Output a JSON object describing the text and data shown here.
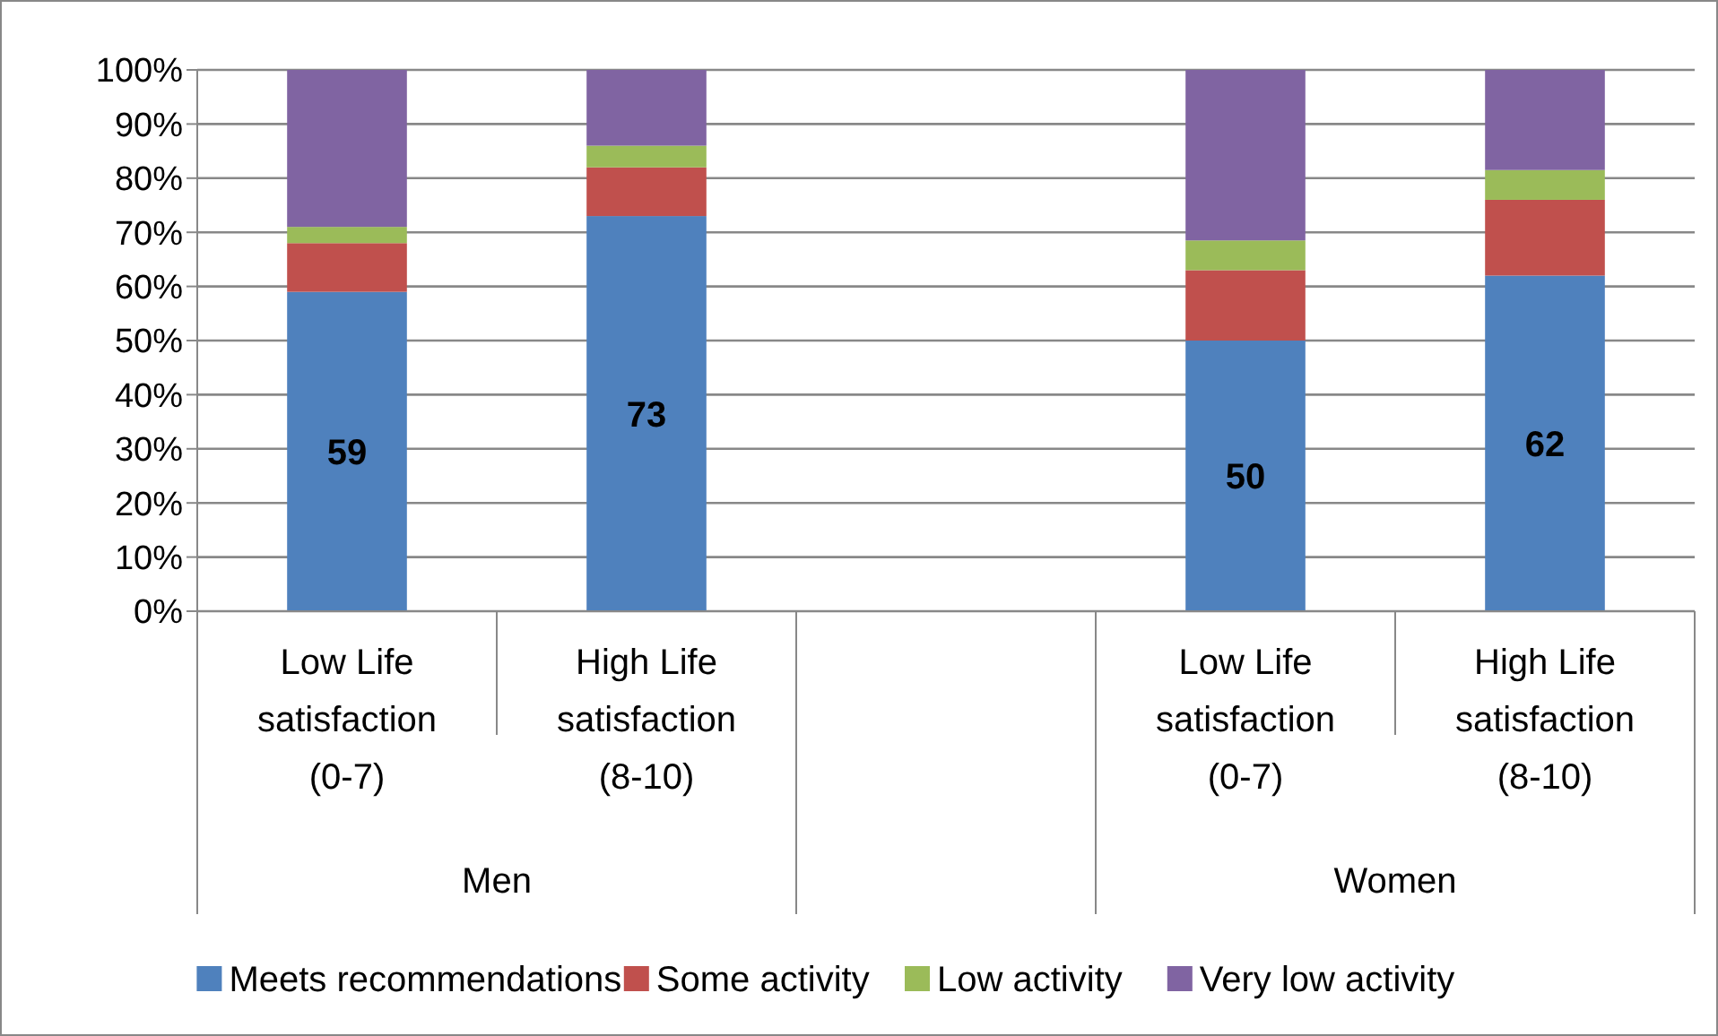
{
  "chart_data": {
    "type": "bar",
    "stacked": true,
    "categories": [
      "Low Life satisfaction (0-7)",
      "High Life satisfaction (8-10)",
      null,
      "Low Life satisfaction (0-7)",
      "High Life satisfaction (8-10)"
    ],
    "series": [
      {
        "name": "Meets recommendations",
        "color": "#4f81bd",
        "values": [
          59,
          73,
          null,
          50,
          62
        ],
        "value_labels": [
          "59",
          "73",
          null,
          "50",
          "62"
        ]
      },
      {
        "name": "Some activity",
        "color": "#c0504d",
        "values": [
          9,
          9,
          null,
          13,
          14
        ]
      },
      {
        "name": "Low activity",
        "color": "#9bbb59",
        "values": [
          3,
          4,
          null,
          5.5,
          5.5
        ]
      },
      {
        "name": "Very low activity",
        "color": "#8064a2",
        "values": [
          29,
          14,
          null,
          31.5,
          18.5
        ]
      }
    ],
    "ylim": [
      0,
      100
    ],
    "yticks": [
      {
        "value": 0,
        "label": "0%"
      },
      {
        "value": 10,
        "label": "10%"
      },
      {
        "value": 20,
        "label": "20%"
      },
      {
        "value": 30,
        "label": "30%"
      },
      {
        "value": 40,
        "label": "40%"
      },
      {
        "value": 50,
        "label": "50%"
      },
      {
        "value": 60,
        "label": "60%"
      },
      {
        "value": 70,
        "label": "70%"
      },
      {
        "value": 80,
        "label": "80%"
      },
      {
        "value": 90,
        "label": "90%"
      },
      {
        "value": 100,
        "label": "100%"
      }
    ],
    "grid": "y",
    "legend": "bottom",
    "annotations": [
      "Men",
      "Women"
    ]
  }
}
